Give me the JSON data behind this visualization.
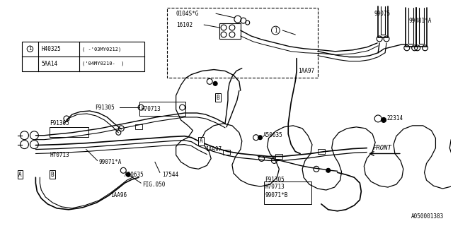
{
  "bg_color": "#ffffff",
  "line_color": "#000000",
  "fig_width": 6.4,
  "fig_height": 3.2,
  "dpi": 100,
  "watermark": "A050001383",
  "legend_row1_part": "H40325",
  "legend_row1_range": "( -’03MY0212)",
  "legend_row2_part": "5AA14",
  "legend_row2_range": "(’04MY0210-   )",
  "label_0104SG": "0104S*G",
  "label_16102": "16102",
  "label_99075": "99075",
  "label_99081A": "99081*A",
  "label_22314": "22314",
  "label_F91305_1": "F91305",
  "label_H70713_1": "H70713",
  "label_F91305_2": "F91305",
  "label_H70713_2": "H70713",
  "label_99071A": "99071*A",
  "label_A50635_1": "A50635",
  "label_17544": "17544",
  "label_FIG050": "FIG.050",
  "label_1AA96": "1AA96",
  "label_1AA97": "1AA97",
  "label_A50635_2": "A50635",
  "label_F91305_3": "F91305",
  "label_H70713_3": "H70713",
  "label_99071B": "99071*B",
  "label_FRONT": "FRONT"
}
